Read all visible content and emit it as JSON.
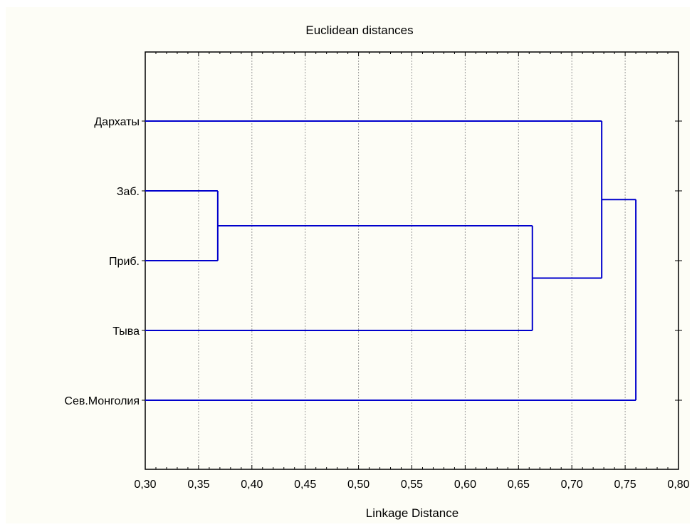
{
  "chart_data": {
    "type": "dendrogram",
    "title": "Euclidean distances",
    "xlabel": "Linkage Distance",
    "xlim": [
      0.3,
      0.8
    ],
    "x_ticks": [
      "0,30",
      "0,35",
      "0,40",
      "0,45",
      "0,50",
      "0,55",
      "0,60",
      "0,65",
      "0,70",
      "0,75",
      "0,80"
    ],
    "leaves": [
      "Дархаты",
      "Заб.",
      "Приб.",
      "Тыва",
      "Сев.Монголия"
    ],
    "merges": [
      {
        "a": "Заб.",
        "b": "Приб.",
        "distance": 0.368
      },
      {
        "a": "Заб.+Приб.",
        "b": "Тыва",
        "distance": 0.663
      },
      {
        "a": "Дархаты",
        "b": "Заб.+Приб.+Тыва",
        "distance": 0.728
      },
      {
        "a": "Дархаты+Заб.+Приб.+Тыва",
        "b": "Сев.Монголия",
        "distance": 0.76
      }
    ],
    "grid": "vertical dotted",
    "line_color": "#0000cc",
    "grid_color": "#9a9a9a"
  }
}
